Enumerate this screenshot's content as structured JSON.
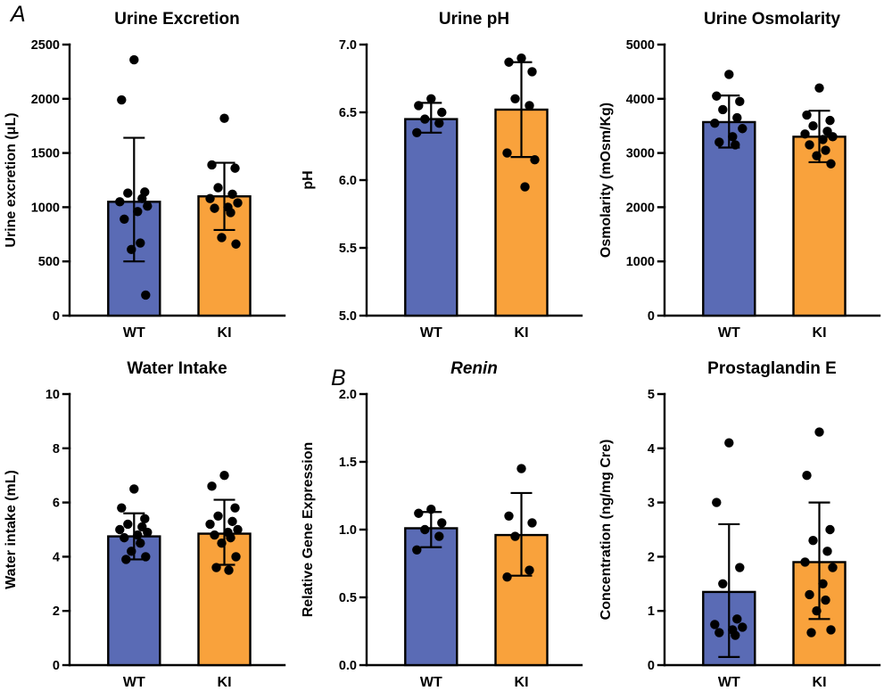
{
  "panels": {
    "a": "A",
    "b": "B"
  },
  "colors": {
    "wt": "#5A6BB5",
    "ki": "#F9A23C",
    "points": "#000000",
    "axis": "#000000"
  },
  "chart_data": [
    {
      "type": "bar",
      "title": "Urine Excretion",
      "title_italic": false,
      "ylabel": "Urine excretion (μL)",
      "ylim": [
        0,
        2500
      ],
      "yticks": [
        0,
        500,
        1000,
        1500,
        2000,
        2500
      ],
      "ytick_labels": [
        "0",
        "500",
        "1000",
        "1500",
        "2000",
        "2500"
      ],
      "categories": [
        "WT",
        "KI"
      ],
      "grid": false,
      "legend": "none",
      "series": [
        {
          "name": "WT",
          "color": "#5A6BB5",
          "mean": 1050,
          "err": [
            500,
            1640
          ],
          "points": [
            2360,
            1990,
            1140,
            1130,
            1080,
            1050,
            1010,
            960,
            890,
            670,
            610,
            190
          ]
        },
        {
          "name": "KI",
          "color": "#F9A23C",
          "mean": 1100,
          "err": [
            790,
            1410
          ],
          "points": [
            1820,
            1390,
            1360,
            1180,
            1120,
            1080,
            1040,
            1000,
            990,
            950,
            720,
            660
          ]
        }
      ]
    },
    {
      "type": "bar",
      "title": "Urine pH",
      "title_italic": false,
      "ylabel": "pH",
      "ylim": [
        5.0,
        7.0
      ],
      "yticks": [
        5.0,
        5.5,
        6.0,
        6.5,
        7.0
      ],
      "ytick_labels": [
        "5.0",
        "5.5",
        "6.0",
        "6.5",
        "7.0"
      ],
      "categories": [
        "WT",
        "KI"
      ],
      "grid": false,
      "legend": "none",
      "series": [
        {
          "name": "WT",
          "color": "#5A6BB5",
          "mean": 6.45,
          "err": [
            6.35,
            6.57
          ],
          "points": [
            6.6,
            6.55,
            6.5,
            6.45,
            6.42,
            6.35
          ]
        },
        {
          "name": "KI",
          "color": "#F9A23C",
          "mean": 6.52,
          "err": [
            6.17,
            6.87
          ],
          "points": [
            6.9,
            6.87,
            6.8,
            6.6,
            6.55,
            6.2,
            6.15,
            5.95
          ]
        }
      ]
    },
    {
      "type": "bar",
      "title": "Urine Osmolarity",
      "title_italic": false,
      "ylabel": "Osmolarity (mOsm/Kg)",
      "ylim": [
        0,
        5000
      ],
      "yticks": [
        0,
        1000,
        2000,
        3000,
        4000,
        5000
      ],
      "ytick_labels": [
        "0",
        "1000",
        "2000",
        "3000",
        "4000",
        "5000"
      ],
      "categories": [
        "WT",
        "KI"
      ],
      "grid": false,
      "legend": "none",
      "series": [
        {
          "name": "WT",
          "color": "#5A6BB5",
          "mean": 3570,
          "err": [
            3100,
            4060
          ],
          "points": [
            4450,
            4050,
            3950,
            3800,
            3650,
            3550,
            3450,
            3300,
            3200,
            3150
          ]
        },
        {
          "name": "KI",
          "color": "#F9A23C",
          "mean": 3300,
          "err": [
            2830,
            3780
          ],
          "points": [
            4200,
            3700,
            3600,
            3500,
            3400,
            3350,
            3300,
            3250,
            3150,
            3050,
            2950,
            2800
          ]
        }
      ]
    },
    {
      "type": "bar",
      "title": "Water Intake",
      "title_italic": false,
      "ylabel": "Water intake (mL)",
      "ylim": [
        0,
        10
      ],
      "yticks": [
        0,
        2,
        4,
        6,
        8,
        10
      ],
      "ytick_labels": [
        "0",
        "2",
        "4",
        "6",
        "8",
        "10"
      ],
      "categories": [
        "WT",
        "KI"
      ],
      "grid": false,
      "legend": "none",
      "series": [
        {
          "name": "WT",
          "color": "#5A6BB5",
          "mean": 4.75,
          "err": [
            3.9,
            5.6
          ],
          "points": [
            6.5,
            5.8,
            5.4,
            5.2,
            5.1,
            5.0,
            4.9,
            4.8,
            4.7,
            4.5,
            4.2,
            4.0,
            3.9
          ]
        },
        {
          "name": "KI",
          "color": "#F9A23C",
          "mean": 4.85,
          "err": [
            3.7,
            6.1
          ],
          "points": [
            7.0,
            6.6,
            5.8,
            5.5,
            5.3,
            5.2,
            5.0,
            4.9,
            4.8,
            4.7,
            4.5,
            4.0,
            3.6,
            3.5
          ]
        }
      ]
    },
    {
      "type": "bar",
      "title": "Renin",
      "title_italic": true,
      "ylabel": "Relative Gene Expression",
      "ylim": [
        0.0,
        2.0
      ],
      "yticks": [
        0.0,
        0.5,
        1.0,
        1.5,
        2.0
      ],
      "ytick_labels": [
        "0.0",
        "0.5",
        "1.0",
        "1.5",
        "2.0"
      ],
      "categories": [
        "WT",
        "KI"
      ],
      "grid": false,
      "legend": "none",
      "series": [
        {
          "name": "WT",
          "color": "#5A6BB5",
          "mean": 1.01,
          "err": [
            0.87,
            1.13
          ],
          "points": [
            1.15,
            1.12,
            1.05,
            1.0,
            0.95,
            0.85
          ]
        },
        {
          "name": "KI",
          "color": "#F9A23C",
          "mean": 0.96,
          "err": [
            0.66,
            1.27
          ],
          "points": [
            1.45,
            1.1,
            1.05,
            0.95,
            0.7,
            0.65
          ]
        }
      ]
    },
    {
      "type": "bar",
      "title": "Prostaglandin E",
      "title_italic": false,
      "ylabel": "Concentration (ng/mg Cre)",
      "ylim": [
        0,
        5
      ],
      "yticks": [
        0,
        1,
        2,
        3,
        4,
        5
      ],
      "ytick_labels": [
        "0",
        "1",
        "2",
        "3",
        "4",
        "5"
      ],
      "categories": [
        "WT",
        "KI"
      ],
      "grid": false,
      "legend": "none",
      "series": [
        {
          "name": "WT",
          "color": "#5A6BB5",
          "mean": 1.35,
          "err": [
            0.15,
            2.6
          ],
          "points": [
            4.1,
            3.0,
            1.8,
            1.5,
            0.85,
            0.75,
            0.7,
            0.65,
            0.6,
            0.55
          ]
        },
        {
          "name": "KI",
          "color": "#F9A23C",
          "mean": 1.9,
          "err": [
            0.85,
            3.0
          ],
          "points": [
            4.3,
            3.5,
            2.5,
            2.3,
            2.1,
            1.9,
            1.8,
            1.5,
            1.3,
            1.2,
            1.0,
            0.65,
            0.6
          ]
        }
      ]
    }
  ]
}
